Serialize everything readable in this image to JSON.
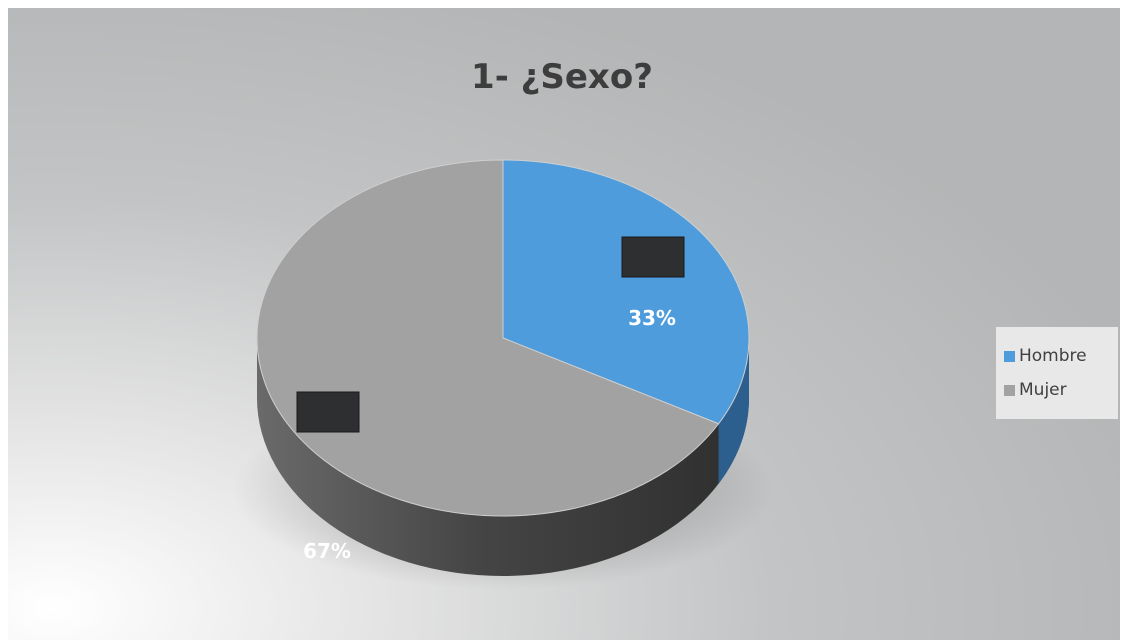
{
  "chart_data": {
    "type": "pie",
    "title": "1- ¿Sexo?",
    "categories": [
      "Hombre",
      "Mujer"
    ],
    "values": [
      33,
      67
    ],
    "data_labels": [
      "33%",
      "67%"
    ],
    "colors": [
      "#4e9cdc",
      "#a2a2a2"
    ],
    "legend_position": "right",
    "style": "3d"
  }
}
